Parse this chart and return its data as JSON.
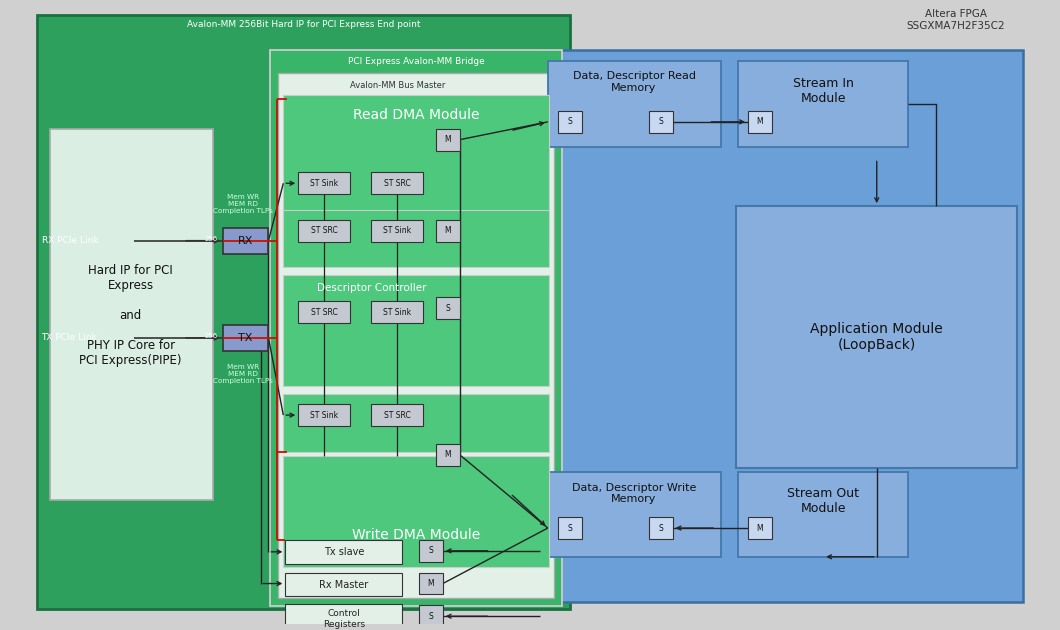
{
  "bg_outer": "#d0d0d0",
  "bg_green_outer": "#2ea05e",
  "bg_green_mid": "#38b568",
  "bg_green_inner": "#4dc87c",
  "bg_blue": "#6a9fd8",
  "bg_blue_box": "#7bacd8",
  "box_light": "#e8f5ee",
  "box_gray": "#c8ccd4",
  "box_blue_light": "#b8ccee",
  "red": "#cc1100",
  "dark": "#222222",
  "top_label": "Avalon-MM 256Bit Hard IP for PCI Express End point",
  "mid_label": "PCI Express Avalon-MM Bridge",
  "bus_master_label": "Avalon-MM Bus Master",
  "altera": "Altera FPGA\nSSGXMA7H2F35C2",
  "hard_ip_text": "Hard IP for PCI\nExpress\n\nand\n\nPHY IP Core for\nPCI Express(PIPE)",
  "rx_link": "RX PCIe Link",
  "tx_link": "TX PCIe Link",
  "read_dma": "Read DMA Module",
  "write_dma": "Write DMA Module",
  "descriptor": "Descriptor Controller",
  "tx_slave": "Tx slave",
  "rx_master": "Rx Master",
  "control_reg": "Control\nRegisters",
  "data_read_mem": "Data, Descriptor Read\nMemory",
  "data_write_mem": "Data, Descriptor Write\nMemory",
  "stream_in": "Stream In\nModule",
  "stream_out": "Stream Out\nModule",
  "app_module": "Application Module\n(LoopBack)",
  "mem_wr": "Mem WR\nMEM RD\nCompletion TLPs"
}
